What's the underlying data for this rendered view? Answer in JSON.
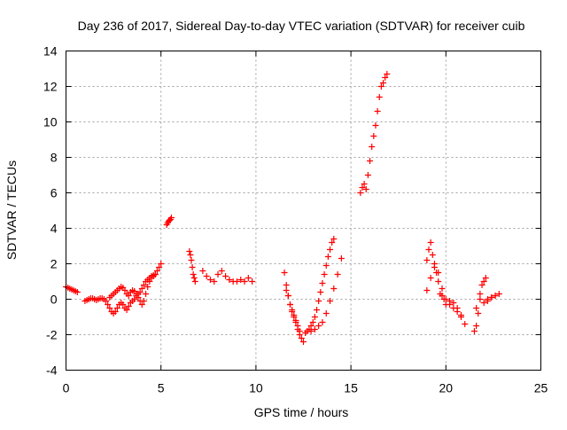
{
  "chart_data": {
    "type": "scatter",
    "title": "Day 236 of 2017, Sidereal Day-to-day VTEC variation (SDTVAR) for receiver cuib",
    "xlabel": "GPS time / hours",
    "ylabel": "SDTVAR / TECUs",
    "xlim": [
      0,
      25
    ],
    "ylim": [
      -4,
      14
    ],
    "xticks": [
      "0",
      "5",
      "10",
      "15",
      "20",
      "25"
    ],
    "yticks": [
      "-4",
      "-2",
      "0",
      "2",
      "4",
      "6",
      "8",
      "10",
      "12",
      "14"
    ],
    "grid": true,
    "marker": "+",
    "color": "#ff0000",
    "series": [
      {
        "name": "seg1",
        "x": [
          0.0,
          0.1,
          0.2,
          0.3,
          0.4,
          0.5,
          0.6
        ],
        "y": [
          0.7,
          0.65,
          0.6,
          0.55,
          0.5,
          0.45,
          0.4
        ]
      },
      {
        "name": "seg2",
        "x": [
          1.0,
          1.1,
          1.2,
          1.3,
          1.4,
          1.5,
          1.6,
          1.7,
          1.8,
          1.9,
          2.0,
          2.1,
          2.2,
          2.3,
          2.4,
          2.5,
          2.6,
          2.7,
          2.8,
          2.9,
          3.0,
          3.1,
          3.2,
          3.3,
          3.4,
          3.5,
          3.6,
          3.7,
          3.8,
          3.9,
          4.0,
          4.1,
          4.2,
          4.3,
          4.4,
          4.5,
          4.6,
          4.7,
          4.8,
          4.9,
          5.0
        ],
        "y": [
          -0.1,
          -0.05,
          0.0,
          0.05,
          0.05,
          0.0,
          -0.05,
          0.0,
          0.05,
          0.05,
          0.0,
          -0.1,
          -0.3,
          -0.5,
          -0.7,
          -0.8,
          -0.7,
          -0.5,
          -0.3,
          -0.2,
          -0.3,
          -0.5,
          -0.6,
          -0.4,
          -0.2,
          -0.1,
          0.0,
          0.2,
          0.3,
          0.4,
          0.6,
          0.8,
          1.0,
          1.1,
          1.2,
          1.3,
          1.35,
          1.4,
          1.6,
          1.8,
          2.0
        ]
      },
      {
        "name": "seg2b",
        "x": [
          2.3,
          2.4,
          2.5,
          2.6,
          2.7,
          2.8,
          2.9,
          3.0,
          3.1,
          3.2,
          3.3,
          3.4,
          3.5,
          3.6,
          3.7,
          3.8,
          3.9,
          4.0,
          4.1,
          4.2,
          4.3,
          4.4,
          4.5,
          4.6,
          4.7
        ],
        "y": [
          0.1,
          0.2,
          0.3,
          0.4,
          0.5,
          0.6,
          0.7,
          0.65,
          0.5,
          0.3,
          0.2,
          0.4,
          0.5,
          0.45,
          0.3,
          0.1,
          -0.1,
          -0.3,
          -0.1,
          0.3,
          0.7,
          1.0,
          1.2,
          1.3,
          1.4
        ]
      },
      {
        "name": "seg3",
        "x": [
          5.3,
          5.35,
          5.4,
          5.45,
          5.5,
          5.55
        ],
        "y": [
          4.2,
          4.3,
          4.4,
          4.45,
          4.5,
          4.6
        ]
      },
      {
        "name": "seg4",
        "x": [
          6.5,
          6.55,
          6.6,
          6.65,
          6.7,
          6.75,
          6.8
        ],
        "y": [
          2.7,
          2.5,
          2.2,
          1.8,
          1.4,
          1.2,
          1.0
        ]
      },
      {
        "name": "seg5",
        "x": [
          7.2,
          7.4,
          7.6,
          7.8,
          8.0,
          8.2,
          8.4,
          8.6,
          8.8,
          9.0,
          9.2,
          9.4,
          9.6,
          9.8
        ],
        "y": [
          1.6,
          1.3,
          1.1,
          1.0,
          1.4,
          1.6,
          1.3,
          1.1,
          1.0,
          1.0,
          1.1,
          1.0,
          1.2,
          1.0
        ]
      },
      {
        "name": "seg6",
        "x": [
          11.5,
          11.6,
          11.7,
          11.8,
          11.9,
          12.0,
          12.1,
          12.2,
          12.3,
          12.4,
          12.5
        ],
        "y": [
          1.5,
          0.8,
          0.2,
          -0.3,
          -0.7,
          -1.0,
          -1.2,
          -1.5,
          -1.8,
          -2.2,
          -2.4
        ]
      },
      {
        "name": "seg6b",
        "x": [
          11.6,
          11.7,
          11.8,
          11.9,
          12.0,
          12.1,
          12.2,
          12.3
        ],
        "y": [
          0.5,
          0.2,
          -0.3,
          -0.6,
          -0.9,
          -1.3,
          -1.7,
          -2.0
        ]
      },
      {
        "name": "seg7",
        "x": [
          12.6,
          12.7,
          12.8,
          12.9,
          13.0,
          13.1,
          13.2,
          13.3,
          13.4,
          13.5,
          13.6,
          13.7,
          13.8,
          13.9,
          14.0,
          14.1
        ],
        "y": [
          -1.9,
          -1.8,
          -1.7,
          -1.5,
          -1.3,
          -1.0,
          -0.6,
          -0.1,
          0.4,
          0.9,
          1.4,
          1.9,
          2.4,
          2.8,
          3.2,
          3.4
        ]
      },
      {
        "name": "seg7b",
        "x": [
          12.9,
          13.1,
          13.3,
          13.5,
          13.7,
          13.9,
          14.1,
          14.3,
          14.5
        ],
        "y": [
          -1.8,
          -1.7,
          -1.5,
          -1.3,
          -0.8,
          -0.1,
          0.6,
          1.4,
          2.3
        ]
      },
      {
        "name": "seg8",
        "x": [
          15.5,
          15.6,
          15.7,
          15.8,
          15.9,
          16.0,
          16.1,
          16.2,
          16.3,
          16.4,
          16.5,
          16.6,
          16.7,
          16.8,
          16.9
        ],
        "y": [
          6.0,
          6.3,
          6.5,
          6.2,
          7.0,
          7.8,
          8.6,
          9.2,
          9.8,
          10.6,
          11.4,
          12.0,
          12.2,
          12.5,
          12.7
        ]
      },
      {
        "name": "seg9",
        "x": [
          19.0,
          19.1,
          19.2,
          19.3,
          19.4,
          19.5,
          19.6,
          19.7,
          19.8,
          19.9,
          20.0,
          20.2,
          20.4,
          20.6,
          20.8,
          21.0
        ],
        "y": [
          2.2,
          2.8,
          3.2,
          2.5,
          2.0,
          1.5,
          1.0,
          0.3,
          0.2,
          0.0,
          -0.3,
          -0.3,
          -0.5,
          -0.7,
          -1.0,
          -1.4
        ]
      },
      {
        "name": "seg9b",
        "x": [
          19.0,
          19.2,
          19.4,
          19.6,
          19.8,
          20.0,
          20.2,
          20.4,
          20.6,
          20.8
        ],
        "y": [
          0.5,
          1.2,
          1.8,
          1.5,
          0.6,
          0.0,
          -0.1,
          -0.2,
          -0.5,
          -0.9
        ]
      },
      {
        "name": "seg10",
        "x": [
          21.5,
          21.6,
          21.7,
          21.8,
          21.9,
          22.0,
          22.1,
          22.2,
          22.4,
          22.6,
          22.8
        ],
        "y": [
          -1.8,
          -1.5,
          -0.8,
          0.3,
          0.8,
          1.0,
          1.2,
          -0.1,
          0.1,
          0.2,
          0.3
        ]
      },
      {
        "name": "seg10b",
        "x": [
          21.6,
          21.8,
          22.0,
          22.2,
          22.4,
          22.6
        ],
        "y": [
          -0.5,
          0.0,
          -0.2,
          0.0,
          0.1,
          0.2
        ]
      }
    ]
  }
}
